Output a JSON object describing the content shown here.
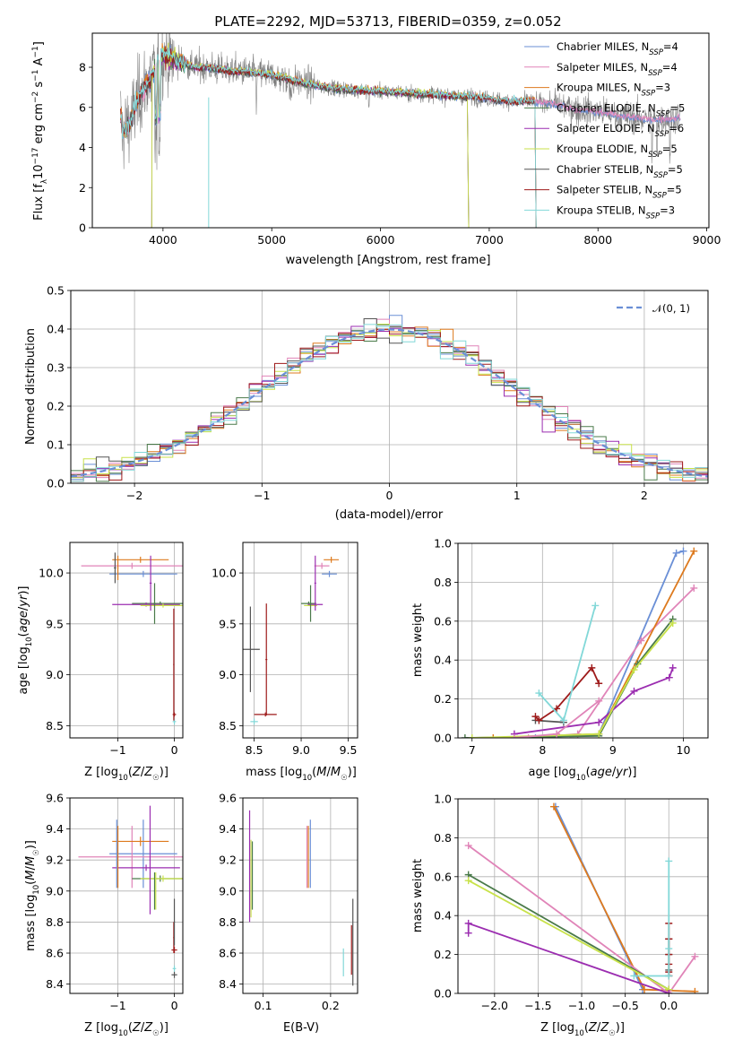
{
  "figure_title": "PLATE=2292, MJD=53713, FIBERID=0359, z=0.052",
  "colors": {
    "Chabrier MILES": "#6a8fd6",
    "Salpeter MILES": "#e084b8",
    "Kroupa MILES": "#dd7a1e",
    "Chabrier ELODIE": "#4a7a4a",
    "Salpeter ELODIE": "#9b2db0",
    "Kroupa ELODIE": "#c8e24a",
    "Chabrier STELIB": "#555555",
    "Salpeter STELIB": "#9e1a1a",
    "Kroupa STELIB": "#82d8d8",
    "data": "#808080",
    "normal": "#6a8fd6"
  },
  "chart_data": [
    {
      "id": "spectrum",
      "type": "line",
      "xlabel": "wavelength [Angstrom, rest frame]",
      "ylabel": "Flux [f_λ 10^-17 erg cm^-2 s^-1 A^-1]",
      "xlim": [
        3350,
        9020
      ],
      "ylim": [
        0,
        9.7
      ],
      "xticks": [
        4000,
        5000,
        6000,
        7000,
        8000,
        9000
      ],
      "yticks": [
        0,
        2,
        4,
        6,
        8
      ],
      "grid": false,
      "legend_position": "right",
      "legend": [
        {
          "model": "Chabrier MILES",
          "label": "Chabrier MILES, N",
          "sub": "SSP",
          "eq": "=4"
        },
        {
          "model": "Salpeter MILES",
          "label": "Salpeter MILES, N",
          "sub": "SSP",
          "eq": "=4"
        },
        {
          "model": "Kroupa MILES",
          "label": "Kroupa MILES, N",
          "sub": "SSP",
          "eq": "=3"
        },
        {
          "model": "Chabrier ELODIE",
          "label": "Chabrier ELODIE, N",
          "sub": "SSP",
          "eq": "=5"
        },
        {
          "model": "Salpeter ELODIE",
          "label": "Salpeter ELODIE, N",
          "sub": "SSP",
          "eq": "=6"
        },
        {
          "model": "Kroupa ELODIE",
          "label": "Kroupa ELODIE, N",
          "sub": "SSP",
          "eq": "=5"
        },
        {
          "model": "Chabrier STELIB",
          "label": "Chabrier STELIB, N",
          "sub": "SSP",
          "eq": "=5"
        },
        {
          "model": "Salpeter STELIB",
          "label": "Salpeter STELIB, N",
          "sub": "SSP",
          "eq": "=5"
        },
        {
          "model": "Kroupa STELIB",
          "label": "Kroupa STELIB, N",
          "sub": "SSP",
          "eq": "=3"
        }
      ],
      "data_wavelength_range": [
        3610,
        8760
      ],
      "continuum_points": [
        [
          3620,
          4.7
        ],
        [
          3700,
          5.3
        ],
        [
          3800,
          6.8
        ],
        [
          3900,
          7.6
        ],
        [
          4000,
          8.7
        ],
        [
          4100,
          8.4
        ],
        [
          4200,
          8.2
        ],
        [
          4300,
          8.0
        ],
        [
          4400,
          8.0
        ],
        [
          4500,
          7.9
        ],
        [
          4700,
          7.8
        ],
        [
          4900,
          7.7
        ],
        [
          5100,
          7.5
        ],
        [
          5300,
          7.2
        ],
        [
          5500,
          7.0
        ],
        [
          5700,
          6.9
        ],
        [
          6000,
          6.8
        ],
        [
          6300,
          6.7
        ],
        [
          6600,
          6.6
        ],
        [
          6900,
          6.5
        ],
        [
          7200,
          6.3
        ],
        [
          7400,
          6.3
        ],
        [
          7600,
          6.2
        ],
        [
          7800,
          5.9
        ],
        [
          8000,
          5.8
        ],
        [
          8200,
          5.6
        ],
        [
          8500,
          5.4
        ],
        [
          8760,
          5.5
        ]
      ],
      "model_ranges": {
        "Kroupa STELIB": [
          3610,
          7420
        ],
        "Salpeter STELIB": [
          3610,
          7420
        ],
        "Chabrier STELIB": [
          3610,
          7420
        ],
        "Kroupa MILES": [
          3610,
          7420
        ],
        "Chabrier MILES": [
          3610,
          8760
        ],
        "Salpeter MILES": [
          3610,
          8760
        ],
        "Chabrier ELODIE": [
          3900,
          6800
        ],
        "Kroupa ELODIE": [
          3900,
          6800
        ],
        "Salpeter ELODIE": [
          3900,
          6800
        ]
      }
    },
    {
      "id": "residuals",
      "type": "histogram",
      "xlabel": "(data-model)/error",
      "ylabel": "Normed distribution",
      "xlim": [
        -2.5,
        2.5
      ],
      "ylim": [
        0,
        0.5
      ],
      "xticks": [
        -2,
        -1,
        0,
        1,
        2
      ],
      "yticks": [
        0.0,
        0.1,
        0.2,
        0.3,
        0.4,
        0.5
      ],
      "grid": true,
      "legend_position": "top-right",
      "legend_label": "𝒩(0, 1)",
      "bin_width": 0.1
    },
    {
      "id": "age_vs_Z",
      "type": "errorbar",
      "xlabel": "Z [log10(Z/Z☉)]",
      "ylabel": "age [log10(age/yr)]",
      "xlim": [
        -1.85,
        0.15
      ],
      "ylim": [
        8.38,
        10.3
      ],
      "xticks": [
        -1,
        0
      ],
      "yticks": [
        8.5,
        9.0,
        9.5,
        10.0
      ],
      "grid": true,
      "points": [
        {
          "model": "Chabrier MILES",
          "x": -0.55,
          "xerr": 0.6,
          "y": 9.99,
          "yerr": 0.03
        },
        {
          "model": "Salpeter MILES",
          "x": -0.75,
          "xerr": 0.9,
          "y": 10.07,
          "yerr": 0.03
        },
        {
          "model": "Kroupa MILES",
          "x": -0.6,
          "xerr": 0.5,
          "y": 10.13,
          "yerr": 0.03
        },
        {
          "model": "Chabrier ELODIE",
          "x": -0.25,
          "xerr": 0.5,
          "y": 9.7,
          "yerr": 0.02
        },
        {
          "model": "Salpeter ELODIE",
          "x": -0.5,
          "xerr": 0.6,
          "y": 9.69,
          "yerr": 0.02
        },
        {
          "model": "Kroupa ELODIE",
          "x": -0.2,
          "xerr": 0.4,
          "y": 9.68,
          "yerr": 0.02
        },
        {
          "model": "Chabrier STELIB",
          "x": -1.05,
          "xerr": 0.02,
          "y": 10.05,
          "yerr": 0.15
        },
        {
          "model": "Salpeter STELIB",
          "x": 0.0,
          "xerr": 0.03,
          "y": 8.61,
          "yerr": 0.02
        },
        {
          "model": "Kroupa STELIB",
          "x": 0.0,
          "xerr": 0.03,
          "y": 8.54,
          "yerr": 0.03
        },
        {
          "model": "Chabrier ELODIE",
          "x": -0.35,
          "xerr": 0.02,
          "y": 9.7,
          "yerr": 0.2
        },
        {
          "model": "Salpeter ELODIE",
          "x": -0.42,
          "xerr": 0.02,
          "y": 9.9,
          "yerr": 0.27
        },
        {
          "model": "Salpeter STELIB",
          "x": -0.01,
          "xerr": 0.01,
          "y": 9.1,
          "yerr": 0.55
        },
        {
          "model": "Kroupa MILES",
          "x": -1.0,
          "xerr": 0.01,
          "y": 10.05,
          "yerr": 0.12
        }
      ]
    },
    {
      "id": "age_vs_mass",
      "type": "errorbar",
      "xlabel": "mass [log10(M/M☉)]",
      "ylabel": "",
      "xlim": [
        8.38,
        9.6
      ],
      "ylim": [
        8.38,
        10.3
      ],
      "xticks": [
        8.5,
        9.0,
        9.5
      ],
      "yticks": [
        8.5,
        9.0,
        9.5,
        10.0
      ],
      "grid": true,
      "points": [
        {
          "model": "Chabrier MILES",
          "x": 9.3,
          "xerr": 0.08,
          "y": 9.99,
          "yerr": 0.03
        },
        {
          "model": "Salpeter MILES",
          "x": 9.22,
          "xerr": 0.08,
          "y": 10.07,
          "yerr": 0.03
        },
        {
          "model": "Kroupa MILES",
          "x": 9.32,
          "xerr": 0.08,
          "y": 10.13,
          "yerr": 0.03
        },
        {
          "model": "Chabrier ELODIE",
          "x": 9.08,
          "xerr": 0.08,
          "y": 9.7,
          "yerr": 0.02
        },
        {
          "model": "Salpeter ELODIE",
          "x": 9.15,
          "xerr": 0.08,
          "y": 9.69,
          "yerr": 0.02
        },
        {
          "model": "Kroupa ELODIE",
          "x": 9.1,
          "xerr": 0.07,
          "y": 9.68,
          "yerr": 0.02
        },
        {
          "model": "Chabrier STELIB",
          "x": 8.46,
          "xerr": 0.1,
          "y": 9.25,
          "yerr": 0.42
        },
        {
          "model": "Salpeter STELIB",
          "x": 8.62,
          "xerr": 0.12,
          "y": 8.61,
          "yerr": 0.02
        },
        {
          "model": "Kroupa STELIB",
          "x": 8.5,
          "xerr": 0.04,
          "y": 8.54,
          "yerr": 0.03
        },
        {
          "model": "Salpeter STELIB",
          "x": 8.63,
          "xerr": 0.01,
          "y": 9.15,
          "yerr": 0.55
        },
        {
          "model": "Chabrier ELODIE",
          "x": 9.1,
          "xerr": 0.01,
          "y": 9.7,
          "yerr": 0.18
        },
        {
          "model": "Salpeter ELODIE",
          "x": 9.15,
          "xerr": 0.01,
          "y": 9.9,
          "yerr": 0.27
        }
      ]
    },
    {
      "id": "massweight_vs_age",
      "type": "line",
      "xlabel": "age [log10(age/yr)]",
      "ylabel": "mass weight",
      "xlim": [
        6.8,
        10.35
      ],
      "ylim": [
        0,
        1.0
      ],
      "xticks": [
        7,
        8,
        9,
        10
      ],
      "yticks": [
        0.0,
        0.2,
        0.4,
        0.6,
        0.8,
        1.0
      ],
      "grid": true,
      "series": [
        {
          "model": "Chabrier MILES",
          "x": [
            7.9,
            8.8,
            9.9,
            10.0
          ],
          "y": [
            0.0,
            0.02,
            0.95,
            0.96
          ]
        },
        {
          "model": "Salpeter MILES",
          "x": [
            7.8,
            8.5,
            9.4,
            10.15
          ],
          "y": [
            0.0,
            0.02,
            0.5,
            0.77
          ]
        },
        {
          "model": "Kroupa MILES",
          "x": [
            7.3,
            8.8,
            10.15
          ],
          "y": [
            0.0,
            0.02,
            0.96
          ]
        },
        {
          "model": "Chabrier ELODIE",
          "x": [
            6.9,
            8.8,
            9.35,
            9.85
          ],
          "y": [
            0.0,
            0.01,
            0.38,
            0.61
          ]
        },
        {
          "model": "Salpeter ELODIE",
          "x": [
            7.6,
            8.8,
            9.3,
            9.8,
            9.85
          ],
          "y": [
            0.02,
            0.08,
            0.24,
            0.31,
            0.36
          ]
        },
        {
          "model": "Kroupa ELODIE",
          "x": [
            7.0,
            8.8,
            9.3,
            9.85
          ],
          "y": [
            0.0,
            0.02,
            0.35,
            0.59
          ]
        },
        {
          "model": "Chabrier STELIB",
          "x": [
            7.9,
            8.3
          ],
          "y": [
            0.09,
            0.08
          ]
        },
        {
          "model": "Salpeter STELIB",
          "x": [
            7.9,
            7.95,
            8.2,
            8.7,
            8.8
          ],
          "y": [
            0.11,
            0.09,
            0.15,
            0.36,
            0.28
          ]
        },
        {
          "model": "Kroupa STELIB",
          "x": [
            7.95,
            8.3,
            8.75
          ],
          "y": [
            0.23,
            0.09,
            0.68
          ]
        },
        {
          "model": "Salpeter MILES",
          "x": [
            7.6,
            8.2,
            8.8
          ],
          "y": [
            0.0,
            0.02,
            0.19
          ]
        }
      ]
    },
    {
      "id": "mass_vs_Z",
      "type": "errorbar",
      "xlabel": "Z [log10(Z/Z☉)]",
      "ylabel": "mass [log10(M/M☉)]",
      "xlim": [
        -1.85,
        0.15
      ],
      "ylim": [
        8.34,
        9.6
      ],
      "xticks": [
        -1,
        0
      ],
      "yticks": [
        8.4,
        8.6,
        8.8,
        9.0,
        9.2,
        9.4,
        9.6
      ],
      "grid": true,
      "points": [
        {
          "model": "Chabrier MILES",
          "x": -0.55,
          "xerr": 0.6,
          "y": 9.24,
          "yerr": 0.22
        },
        {
          "model": "Salpeter MILES",
          "x": -0.75,
          "xerr": 0.95,
          "y": 9.22,
          "yerr": 0.2
        },
        {
          "model": "Kroupa MILES",
          "x": -0.6,
          "xerr": 0.5,
          "y": 9.32,
          "yerr": 0.03
        },
        {
          "model": "Chabrier ELODIE",
          "x": -0.25,
          "xerr": 0.5,
          "y": 9.08,
          "yerr": 0.02
        },
        {
          "model": "Salpeter ELODIE",
          "x": -0.5,
          "xerr": 0.6,
          "y": 9.15,
          "yerr": 0.02
        },
        {
          "model": "Kroupa ELODIE",
          "x": -0.2,
          "xerr": 0.4,
          "y": 9.08,
          "yerr": 0.02
        },
        {
          "model": "Chabrier STELIB",
          "x": 0.0,
          "xerr": 0.05,
          "y": 8.46,
          "yerr": 0.02
        },
        {
          "model": "Salpeter STELIB",
          "x": 0.0,
          "xerr": 0.05,
          "y": 8.62,
          "yerr": 0.02
        },
        {
          "model": "Kroupa STELIB",
          "x": 0.0,
          "xerr": 0.03,
          "y": 8.5,
          "yerr": 0.02
        },
        {
          "model": "Chabrier MILES",
          "x": -1.02,
          "xerr": 0.01,
          "y": 9.24,
          "yerr": 0.22
        },
        {
          "model": "Kroupa MILES",
          "x": -1.0,
          "xerr": 0.01,
          "y": 9.22,
          "yerr": 0.2
        },
        {
          "model": "Salpeter ELODIE",
          "x": -0.43,
          "xerr": 0.01,
          "y": 9.2,
          "yerr": 0.35
        },
        {
          "model": "Chabrier ELODIE",
          "x": -0.35,
          "xerr": 0.01,
          "y": 9.0,
          "yerr": 0.12
        },
        {
          "model": "Kroupa ELODIE",
          "x": -0.33,
          "xerr": 0.01,
          "y": 9.0,
          "yerr": 0.12
        },
        {
          "model": "Salpeter STELIB",
          "x": -0.01,
          "xerr": 0.01,
          "y": 8.7,
          "yerr": 0.1
        },
        {
          "model": "Chabrier STELIB",
          "x": 0.0,
          "xerr": 0.01,
          "y": 8.8,
          "yerr": 0.15
        }
      ]
    },
    {
      "id": "mass_vs_EBV",
      "type": "errorbar",
      "xlabel": "E(B-V)",
      "ylabel": "",
      "xlim": [
        0.07,
        0.24
      ],
      "ylim": [
        8.34,
        9.6
      ],
      "xticks": [
        0.1,
        0.2
      ],
      "yticks": [
        8.4,
        8.6,
        8.8,
        9.0,
        9.2,
        9.4,
        9.6
      ],
      "grid": true,
      "points": [
        {
          "model": "Chabrier MILES",
          "x": 0.17,
          "xerr": 0.0,
          "y": 9.24,
          "yerr": 0.22
        },
        {
          "model": "Salpeter MILES",
          "x": 0.165,
          "xerr": 0.0,
          "y": 9.22,
          "yerr": 0.2
        },
        {
          "model": "Kroupa MILES",
          "x": 0.167,
          "xerr": 0.0,
          "y": 9.22,
          "yerr": 0.2
        },
        {
          "model": "Chabrier ELODIE",
          "x": 0.084,
          "xerr": 0.0,
          "y": 9.1,
          "yerr": 0.22
        },
        {
          "model": "Salpeter ELODIE",
          "x": 0.08,
          "xerr": 0.0,
          "y": 9.16,
          "yerr": 0.36
        },
        {
          "model": "Kroupa ELODIE",
          "x": 0.082,
          "xerr": 0.0,
          "y": 9.08,
          "yerr": 0.25
        },
        {
          "model": "Chabrier STELIB",
          "x": 0.233,
          "xerr": 0.0,
          "y": 8.67,
          "yerr": 0.28
        },
        {
          "model": "Salpeter STELIB",
          "x": 0.231,
          "xerr": 0.0,
          "y": 8.62,
          "yerr": 0.16
        },
        {
          "model": "Kroupa STELIB",
          "x": 0.219,
          "xerr": 0.0,
          "y": 8.54,
          "yerr": 0.09
        }
      ]
    },
    {
      "id": "massweight_vs_Z",
      "type": "line",
      "xlabel": "Z [log10(Z/Z☉)]",
      "ylabel": "mass weight",
      "xlim": [
        -2.42,
        0.45
      ],
      "ylim": [
        0,
        1.0
      ],
      "xticks": [
        -2.0,
        -1.5,
        -1.0,
        -0.5,
        0.0
      ],
      "yticks": [
        0.0,
        0.2,
        0.4,
        0.6,
        0.8,
        1.0
      ],
      "grid": true,
      "series": [
        {
          "model": "Chabrier MILES",
          "x": [
            -1.3,
            -0.3
          ],
          "y": [
            0.96,
            0.02
          ]
        },
        {
          "model": "Kroupa MILES",
          "x": [
            -1.32,
            -0.28,
            0.3
          ],
          "y": [
            0.96,
            0.02,
            0.01
          ]
        },
        {
          "model": "Salpeter MILES",
          "x": [
            -2.3,
            0.0,
            0.3
          ],
          "y": [
            0.76,
            0.0,
            0.19
          ]
        },
        {
          "model": "Chabrier ELODIE",
          "x": [
            -2.3,
            0.0
          ],
          "y": [
            0.61,
            0.02
          ]
        },
        {
          "model": "Kroupa ELODIE",
          "x": [
            -2.3,
            0.0
          ],
          "y": [
            0.58,
            0.02
          ]
        },
        {
          "model": "Salpeter ELODIE",
          "x": [
            -2.3,
            -2.3,
            0.0
          ],
          "y": [
            0.31,
            0.36,
            0.0
          ]
        },
        {
          "model": "Chabrier STELIB",
          "x": [
            0.0,
            0.0,
            0.0,
            0.0
          ],
          "y": [
            0.09,
            0.12,
            0.2,
            0.28
          ]
        },
        {
          "model": "Salpeter STELIB",
          "x": [
            0.0,
            0.0,
            0.0,
            0.0,
            0.0,
            0.0
          ],
          "y": [
            0.09,
            0.11,
            0.15,
            0.2,
            0.28,
            0.36
          ]
        },
        {
          "model": "Kroupa STELIB",
          "x": [
            0.0,
            0.0,
            0.0,
            -0.4
          ],
          "y": [
            0.68,
            0.23,
            0.09,
            0.09
          ]
        }
      ]
    }
  ]
}
